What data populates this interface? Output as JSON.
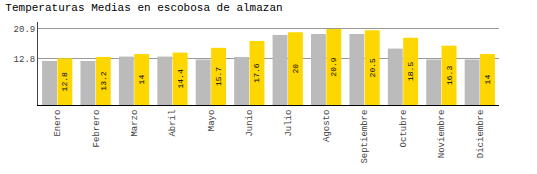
{
  "chart_data": {
    "type": "bar",
    "title": "Temperaturas Medias en escobosa de almazan",
    "categories": [
      "Enero",
      "Febrero",
      "Marzo",
      "Abril",
      "Mayo",
      "Junio",
      "Julio",
      "Agosto",
      "Septiembre",
      "Octubre",
      "Noviembre",
      "Diciembre"
    ],
    "series": [
      {
        "color": "#BBBBBB",
        "values": [
          12.1,
          12.1,
          13.3,
          13.3,
          12.5,
          13.2,
          19.2,
          19.5,
          19.5,
          15.5,
          12.5,
          12.5
        ]
      },
      {
        "color": "#FFD700",
        "values": [
          12.8,
          13.2,
          14.0,
          14.4,
          15.7,
          17.6,
          20.0,
          20.9,
          20.5,
          18.5,
          16.3,
          14.0
        ],
        "data_labels": true
      }
    ],
    "ylim": [
      0,
      22.8
    ],
    "yticks": [
      12.8,
      20.9
    ],
    "y2lim": [
      0,
      22.8
    ],
    "y2ticks": [
      12.8,
      20.9
    ],
    "grid": true
  }
}
